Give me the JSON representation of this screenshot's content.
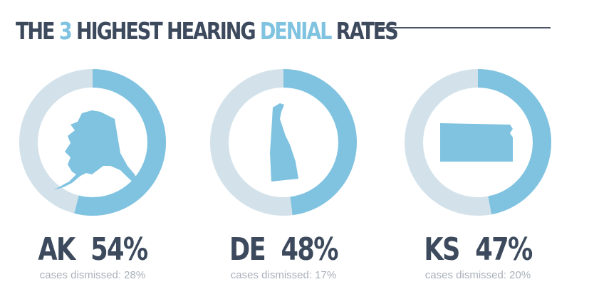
{
  "title": {
    "parts": [
      {
        "text": "THE ",
        "highlight": false
      },
      {
        "text": "3",
        "highlight": true
      },
      {
        "text": " HIGHEST HEARING ",
        "highlight": false
      },
      {
        "text": "DENIAL",
        "highlight": true
      },
      {
        "text": " RATES",
        "highlight": false
      }
    ]
  },
  "colors": {
    "accent": "#7fc3e1",
    "track": "#d3e2ea",
    "text": "#3d4a5d",
    "subtext": "#a8b0b9"
  },
  "chart_data": [
    {
      "type": "pie",
      "state": "AK",
      "value": 54,
      "value_label": "54%",
      "sub_label": "cases dismissed: 28%",
      "icon": "alaska-map-icon"
    },
    {
      "type": "pie",
      "state": "DE",
      "value": 48,
      "value_label": "48%",
      "sub_label": "cases dismissed: 17%",
      "icon": "delaware-map-icon"
    },
    {
      "type": "pie",
      "state": "KS",
      "value": 47,
      "value_label": "47%",
      "sub_label": "cases dismissed: 20%",
      "icon": "kansas-map-icon"
    }
  ]
}
